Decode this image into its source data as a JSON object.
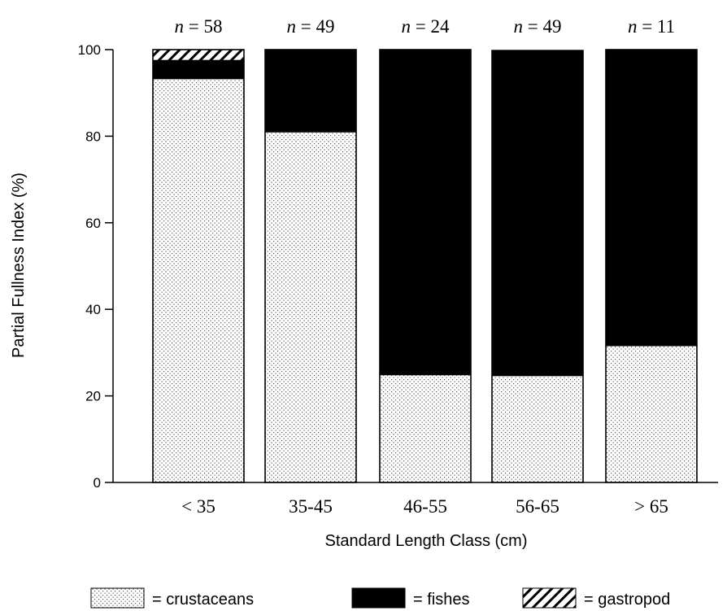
{
  "chart_data": {
    "type": "bar",
    "stacked": true,
    "categories": [
      "< 35",
      "35-45",
      "46-55",
      "56-65",
      "> 65"
    ],
    "sample_sizes": [
      "58",
      "49",
      "24",
      "49",
      "11"
    ],
    "n_prefix": "n",
    "n_sep": " = ",
    "series": [
      {
        "name": "crustaceans",
        "pattern": "dots",
        "values": [
          93.3,
          81.0,
          24.9,
          24.7,
          31.6
        ]
      },
      {
        "name": "fishes",
        "pattern": "solid",
        "values": [
          4.2,
          19.0,
          75.1,
          75.1,
          68.4
        ]
      },
      {
        "name": "gastropod",
        "pattern": "hatch",
        "values": [
          2.5,
          0,
          0,
          0,
          0
        ]
      }
    ],
    "xlabel": "Standard Length Class (cm)",
    "ylabel": "Partial Fullness Index (%)",
    "ylim": [
      0,
      100
    ],
    "yticks": [
      "0",
      "20",
      "40",
      "60",
      "80",
      "100"
    ],
    "legend_position": "bottom",
    "legend_prefix": "= ",
    "grid": false
  }
}
